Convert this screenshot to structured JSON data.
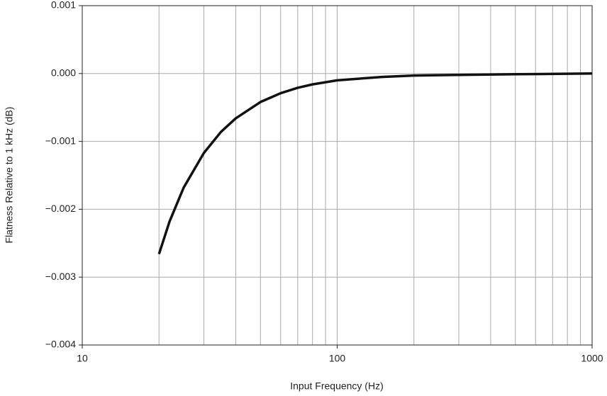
{
  "chart_data": {
    "type": "line",
    "xlabel": "Input Frequency (Hz)",
    "ylabel": "Flatness Relative to 1 kHz (dB)",
    "xscale": "log",
    "x": [
      20,
      22,
      25,
      30,
      35,
      40,
      50,
      60,
      70,
      80,
      100,
      150,
      200,
      300,
      500,
      1000
    ],
    "series": [
      {
        "color": "#111111",
        "values": [
          -0.00266,
          -0.00218,
          -0.00168,
          -0.00117,
          -0.00086,
          -0.00066,
          -0.00042,
          -0.00029,
          -0.00021,
          -0.00016,
          -0.0001,
          -5e-05,
          -3e-05,
          -2e-05,
          -1e-05,
          0
        ]
      }
    ],
    "xlim": [
      10,
      1000
    ],
    "ylim": [
      -0.004,
      0.001
    ],
    "xticks": [
      10,
      100,
      1000
    ],
    "xminorticks": [
      20,
      30,
      40,
      50,
      60,
      70,
      80,
      90,
      200,
      300,
      400,
      500,
      600,
      700,
      800,
      900
    ],
    "yticks": [
      {
        "value": -0.004,
        "label": "−0.004"
      },
      {
        "value": -0.003,
        "label": "−0.003"
      },
      {
        "value": -0.002,
        "label": "−0.002"
      },
      {
        "value": -0.001,
        "label": "−0.001"
      },
      {
        "value": 0,
        "label": "0.000"
      },
      0.001
    ],
    "grid": true
  }
}
